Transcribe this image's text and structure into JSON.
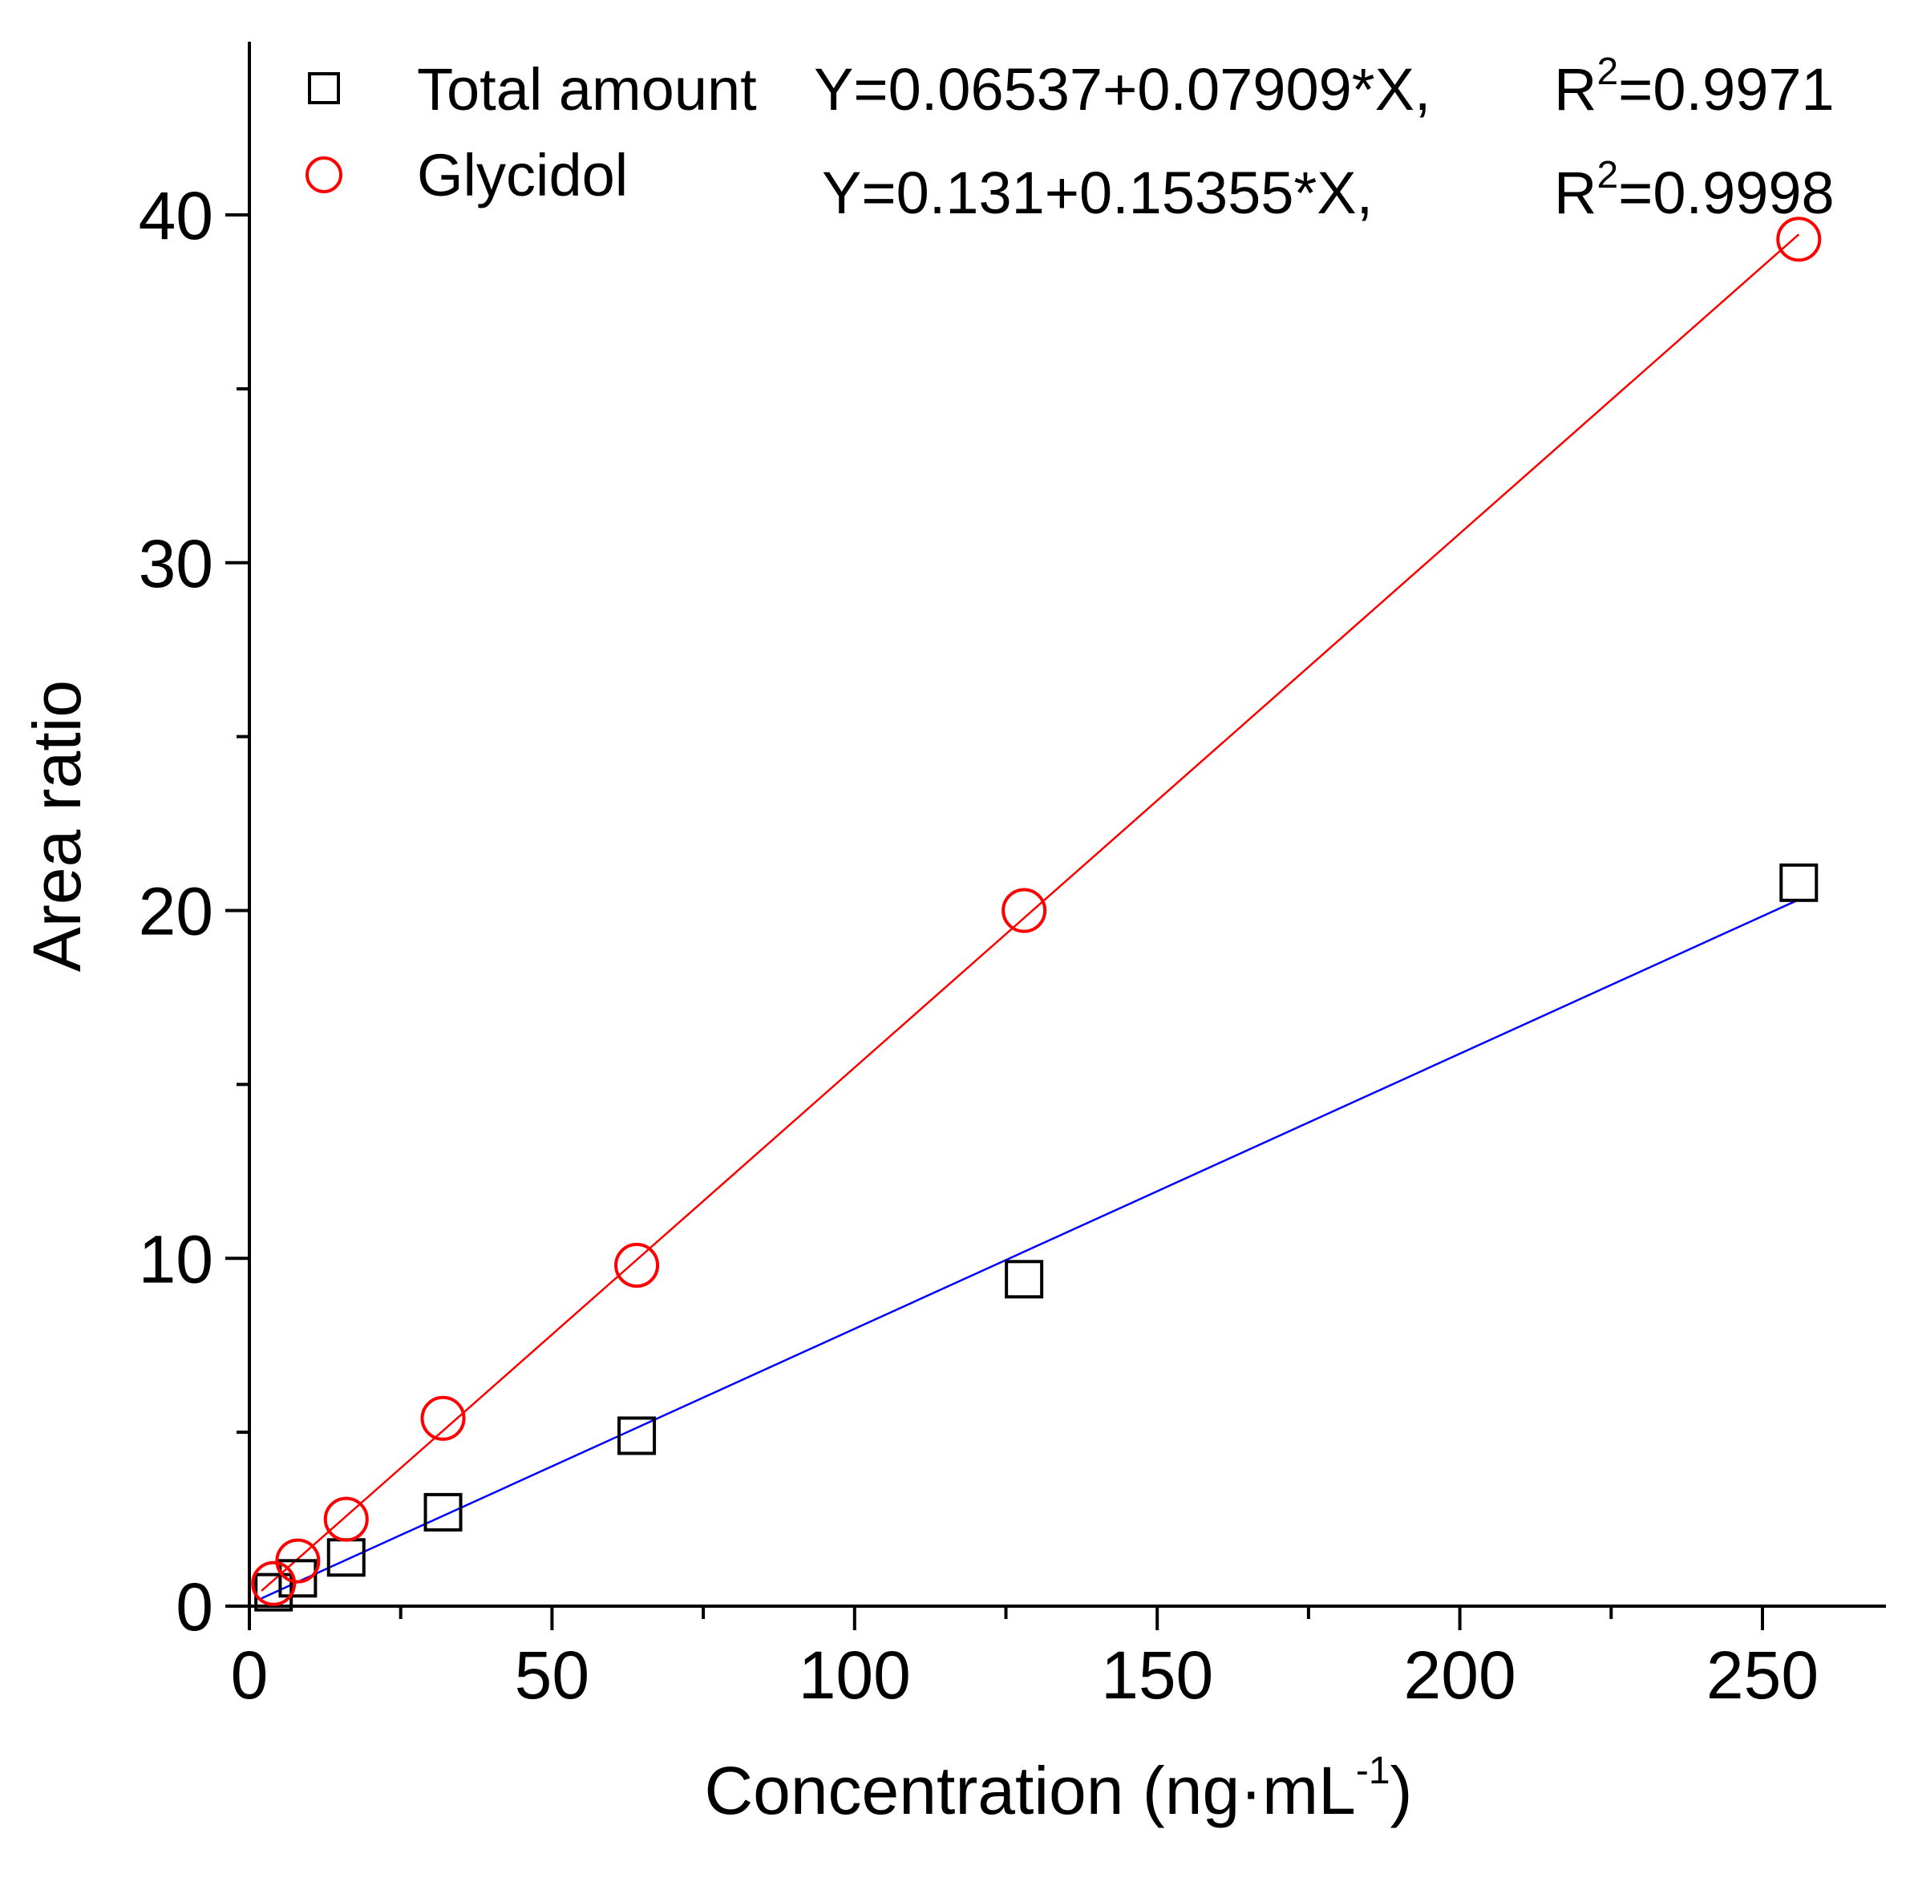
{
  "chart_data": {
    "type": "scatter",
    "xlabel": "Concentration (ng·mL",
    "xlabel_sup": "-1",
    "xlabel_close": ")",
    "ylabel": "Area ratio",
    "xlim": [
      0,
      270
    ],
    "ylim": [
      0,
      45
    ],
    "xticks": [
      0,
      50,
      100,
      150,
      200,
      250
    ],
    "yticks": [
      0,
      10,
      20,
      30,
      40
    ],
    "xtick_labels": [
      "0",
      "50",
      "100",
      "150",
      "200",
      "250"
    ],
    "ytick_labels": [
      "0",
      "10",
      "20",
      "30",
      "40"
    ],
    "x_minor_step": 25,
    "y_minor_step": 5,
    "legend_position": "top-left",
    "series": [
      {
        "name": "Total amount",
        "marker": "square",
        "color": "#000000",
        "fit_color": "#0000ff",
        "x": [
          4,
          8,
          16,
          32,
          64,
          128,
          256
        ],
        "y": [
          0.4,
          0.8,
          1.4,
          2.7,
          4.9,
          9.4,
          20.8
        ],
        "fit": {
          "intercept": 0.06537,
          "slope": 0.07909,
          "x_range": [
            2,
            256
          ]
        },
        "equation": "Y=0.06537+0.07909*X,",
        "r_label": "R",
        "r_sup": "2",
        "r_value": "=0.9971"
      },
      {
        "name": "Glycidol",
        "marker": "circle",
        "color": "#ff0000",
        "fit_color": "#ff0000",
        "x": [
          4,
          8,
          16,
          32,
          64,
          128,
          256
        ],
        "y": [
          0.65,
          1.3,
          2.5,
          5.4,
          9.8,
          20.0,
          39.3
        ],
        "fit": {
          "intercept": 0.131,
          "slope": 0.15355,
          "x_range": [
            2,
            256
          ]
        },
        "equation": "Y=0.131+0.15355*X,",
        "r_label": "R",
        "r_sup": "2",
        "r_value": "=0.9998"
      }
    ]
  }
}
